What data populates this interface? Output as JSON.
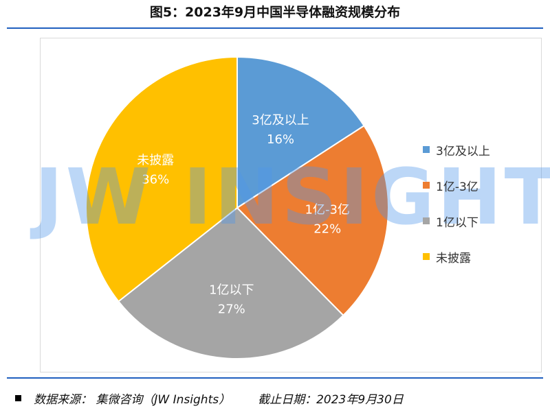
{
  "title": "图5：2023年9月中国半导体融资规模分布",
  "watermark": "JW INSIGHTS",
  "footer": {
    "source": "数据来源： 集微咨询（JW Insights）",
    "date": "截止日期：2023年9月30日"
  },
  "chart_data": {
    "type": "pie",
    "start_angle_deg": 0,
    "direction": "clockwise",
    "slices": [
      {
        "label": "3亿及以上",
        "value": 16,
        "display": "16%",
        "color": "#5b9bd5"
      },
      {
        "label": "1亿-3亿",
        "value": 22,
        "display": "22%",
        "color": "#ed7d31"
      },
      {
        "label": "1亿以下",
        "value": 27,
        "display": "27%",
        "color": "#a5a5a5"
      },
      {
        "label": "未披露",
        "value": 36,
        "display": "36%",
        "color": "#ffc000"
      }
    ],
    "legend_position": "right"
  }
}
